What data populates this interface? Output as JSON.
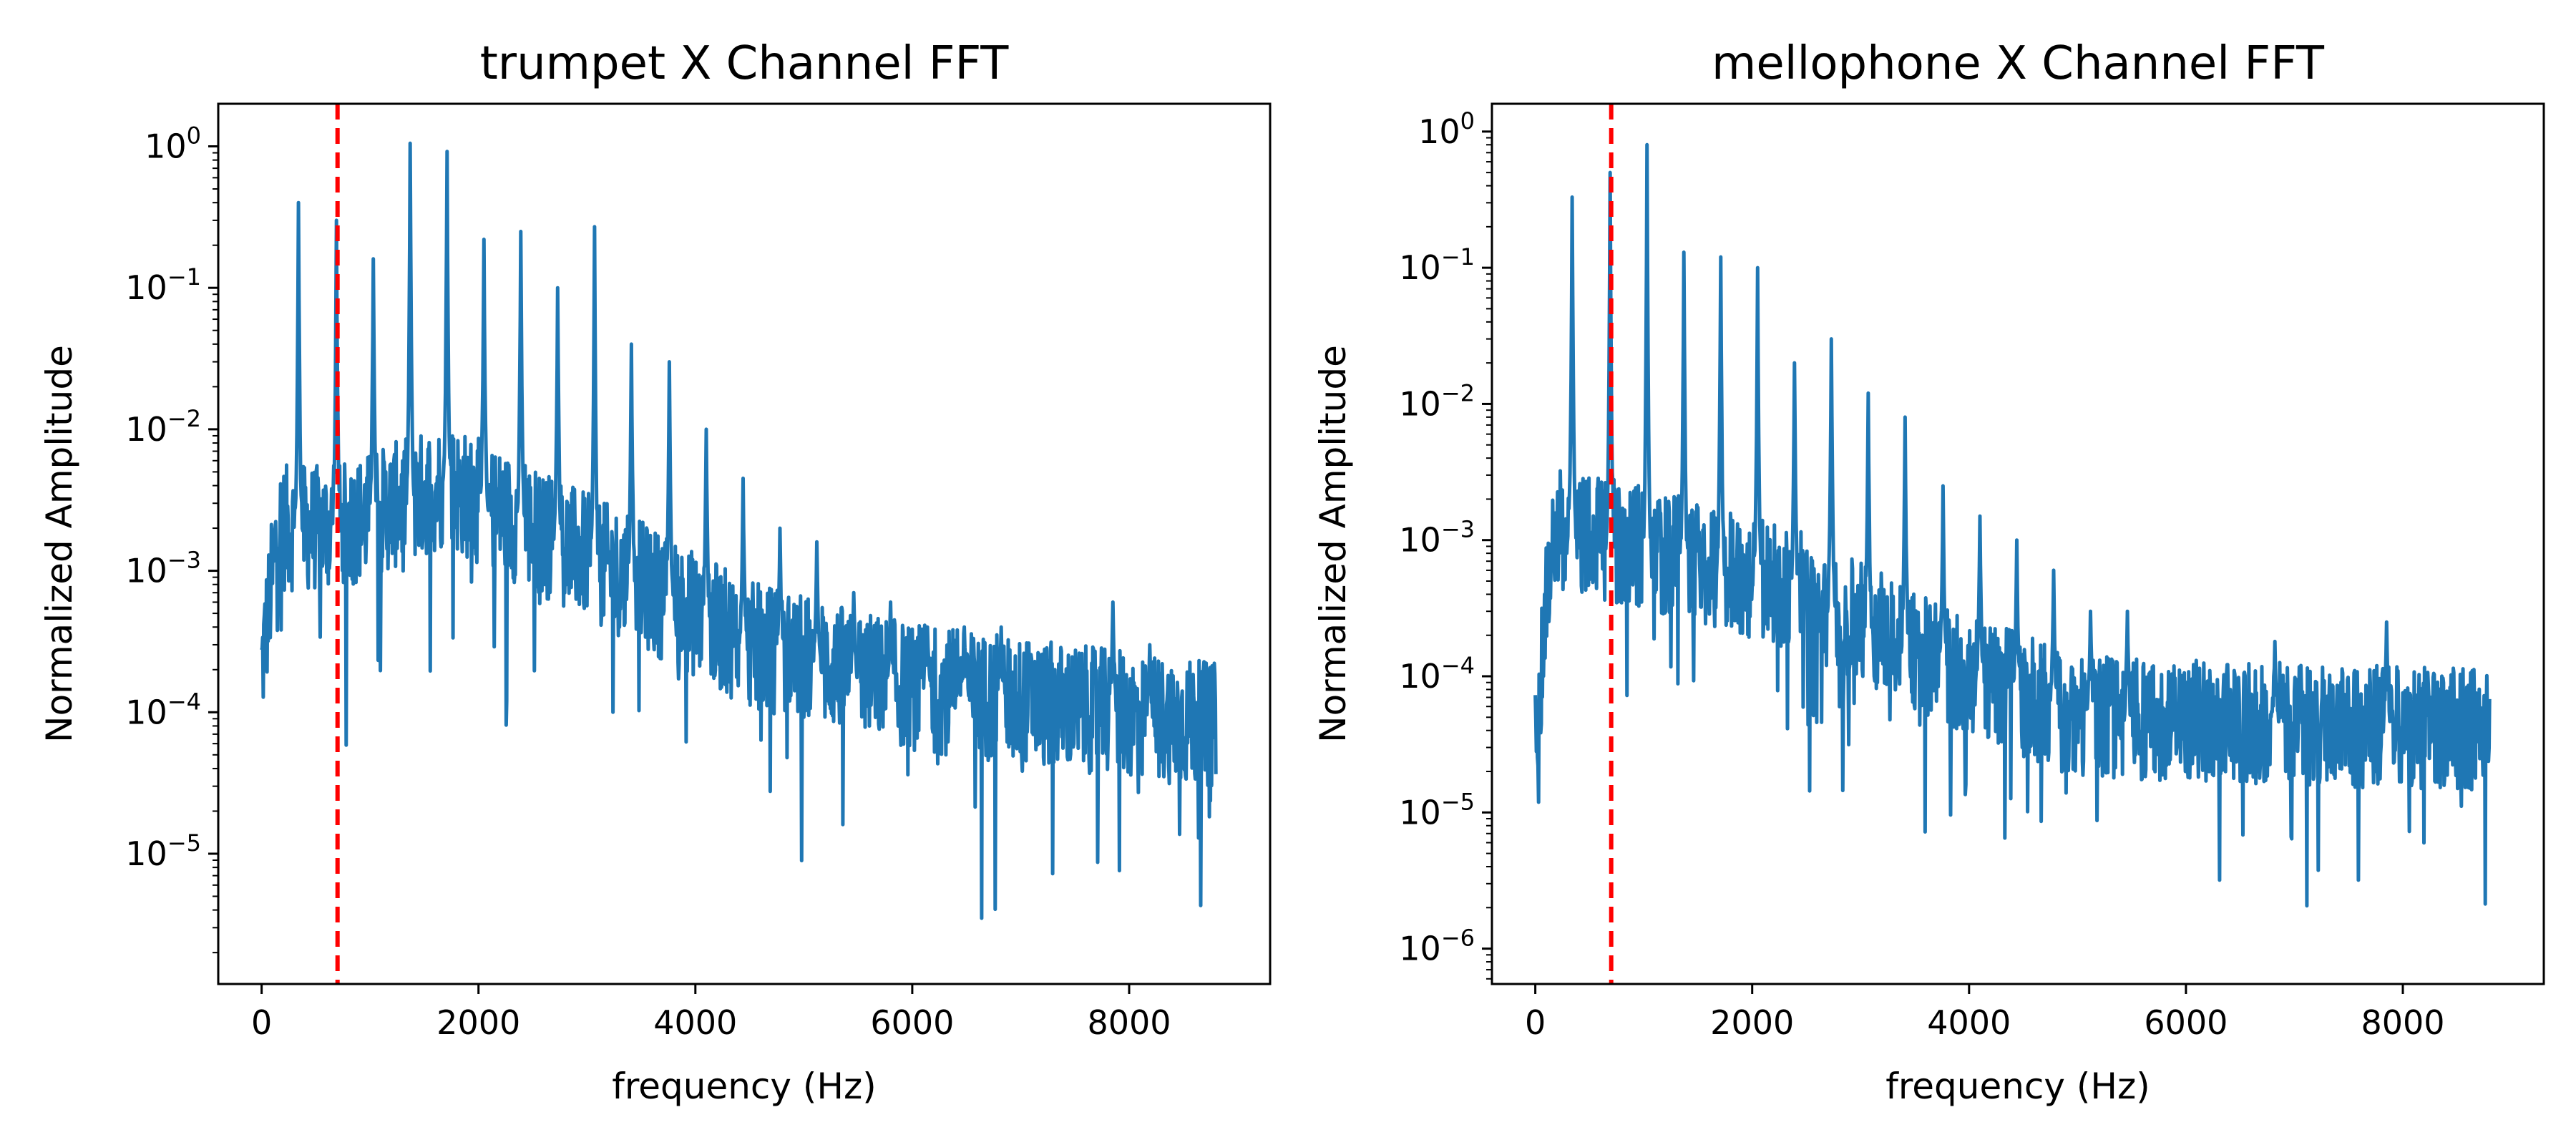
{
  "chart_data": [
    {
      "type": "line",
      "title": "trumpet X Channel FFT",
      "xlabel": "frequency (Hz)",
      "ylabel": "Normalized Amplitude",
      "yscale": "log",
      "xlim": [
        -400,
        9300
      ],
      "ylim": [
        1.2e-06,
        2.0
      ],
      "xticks": [
        0,
        2000,
        4000,
        6000,
        8000
      ],
      "yticks": [
        1e-05,
        0.0001,
        0.001,
        0.01,
        0.1,
        1
      ],
      "ytick_labels": [
        {
          "base": "10",
          "exp": "−5"
        },
        {
          "base": "10",
          "exp": "−4"
        },
        {
          "base": "10",
          "exp": "−3"
        },
        {
          "base": "10",
          "exp": "−2"
        },
        {
          "base": "10",
          "exp": "−1"
        },
        {
          "base": "10",
          "exp": "0"
        }
      ],
      "grid": false,
      "vline": {
        "x": 700,
        "color": "#ff0000",
        "style": "dashed"
      },
      "series_color": "#1f77b4",
      "peaks": [
        {
          "x": 340,
          "y": 0.4
        },
        {
          "x": 690,
          "y": 0.3
        },
        {
          "x": 1030,
          "y": 0.16
        },
        {
          "x": 1370,
          "y": 1.05
        },
        {
          "x": 1710,
          "y": 0.92
        },
        {
          "x": 2050,
          "y": 0.22
        },
        {
          "x": 2390,
          "y": 0.25
        },
        {
          "x": 2730,
          "y": 0.1
        },
        {
          "x": 3070,
          "y": 0.27
        },
        {
          "x": 3410,
          "y": 0.04
        },
        {
          "x": 3760,
          "y": 0.03
        },
        {
          "x": 4100,
          "y": 0.01
        },
        {
          "x": 4440,
          "y": 0.0045
        },
        {
          "x": 4780,
          "y": 0.002
        },
        {
          "x": 5120,
          "y": 0.0016
        },
        {
          "x": 5460,
          "y": 0.0007
        },
        {
          "x": 5800,
          "y": 0.0006
        },
        {
          "x": 6140,
          "y": 0.0004
        },
        {
          "x": 6480,
          "y": 0.0004
        },
        {
          "x": 6820,
          "y": 0.0004
        },
        {
          "x": 7850,
          "y": 0.0006
        },
        {
          "x": 8190,
          "y": 0.0003
        }
      ],
      "noise_floor": [
        {
          "x": 0,
          "y": 0.0002
        },
        {
          "x": 150,
          "y": 0.002
        },
        {
          "x": 700,
          "y": 0.002
        },
        {
          "x": 1700,
          "y": 0.004
        },
        {
          "x": 2500,
          "y": 0.002
        },
        {
          "x": 3500,
          "y": 0.0008
        },
        {
          "x": 4500,
          "y": 0.0003
        },
        {
          "x": 6000,
          "y": 0.00015
        },
        {
          "x": 8800,
          "y": 8e-05
        }
      ]
    },
    {
      "type": "line",
      "title": "mellophone X Channel FFT",
      "xlabel": "frequency (Hz)",
      "ylabel": "Normalized Amplitude",
      "yscale": "log",
      "xlim": [
        -400,
        9300
      ],
      "ylim": [
        5.5e-07,
        1.6
      ],
      "xticks": [
        0,
        2000,
        4000,
        6000,
        8000
      ],
      "yticks": [
        1e-06,
        1e-05,
        0.0001,
        0.001,
        0.01,
        0.1,
        1
      ],
      "ytick_labels": [
        {
          "base": "10",
          "exp": "−6"
        },
        {
          "base": "10",
          "exp": "−5"
        },
        {
          "base": "10",
          "exp": "−4"
        },
        {
          "base": "10",
          "exp": "−3"
        },
        {
          "base": "10",
          "exp": "−2"
        },
        {
          "base": "10",
          "exp": "−1"
        },
        {
          "base": "10",
          "exp": "0"
        }
      ],
      "grid": false,
      "vline": {
        "x": 700,
        "color": "#ff0000",
        "style": "dashed"
      },
      "series_color": "#1f77b4",
      "peaks": [
        {
          "x": 340,
          "y": 0.33
        },
        {
          "x": 690,
          "y": 0.5
        },
        {
          "x": 1030,
          "y": 0.8
        },
        {
          "x": 1370,
          "y": 0.13
        },
        {
          "x": 1710,
          "y": 0.12
        },
        {
          "x": 2050,
          "y": 0.1
        },
        {
          "x": 2390,
          "y": 0.02
        },
        {
          "x": 2730,
          "y": 0.03
        },
        {
          "x": 3070,
          "y": 0.012
        },
        {
          "x": 3410,
          "y": 0.008
        },
        {
          "x": 3760,
          "y": 0.0025
        },
        {
          "x": 4100,
          "y": 0.0015
        },
        {
          "x": 4440,
          "y": 0.001
        },
        {
          "x": 4780,
          "y": 0.0006
        },
        {
          "x": 5120,
          "y": 0.0003
        },
        {
          "x": 5460,
          "y": 0.0003
        },
        {
          "x": 6820,
          "y": 0.00018
        },
        {
          "x": 7850,
          "y": 0.00025
        }
      ],
      "noise_floor": [
        {
          "x": 0,
          "y": 3e-05
        },
        {
          "x": 150,
          "y": 0.0012
        },
        {
          "x": 700,
          "y": 0.001
        },
        {
          "x": 1500,
          "y": 0.0007
        },
        {
          "x": 2500,
          "y": 0.0004
        },
        {
          "x": 3500,
          "y": 0.00015
        },
        {
          "x": 5000,
          "y": 5e-05
        },
        {
          "x": 8800,
          "y": 4e-05
        }
      ]
    }
  ]
}
